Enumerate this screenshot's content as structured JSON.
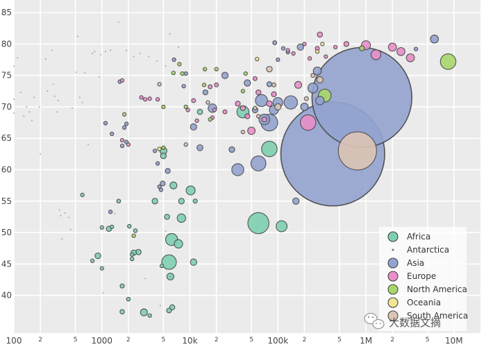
{
  "chart_data": {
    "type": "scatter",
    "title": "",
    "xlabel": "",
    "ylabel": "",
    "x_scale": "log",
    "xlim": [
      100,
      20000000
    ],
    "ylim": [
      34,
      87
    ],
    "x_major_ticks": [
      {
        "value": 100,
        "label": "100"
      },
      {
        "value": 1000,
        "label": "1000"
      },
      {
        "value": 10000,
        "label": "10k"
      },
      {
        "value": 100000,
        "label": "100k"
      },
      {
        "value": 1000000,
        "label": "1M"
      },
      {
        "value": 10000000,
        "label": "10M"
      }
    ],
    "x_minor_ticks": [
      {
        "value": 200,
        "label": "2"
      },
      {
        "value": 500,
        "label": "5"
      },
      {
        "value": 2000,
        "label": "2"
      },
      {
        "value": 5000,
        "label": "5"
      },
      {
        "value": 20000,
        "label": "2"
      },
      {
        "value": 50000,
        "label": "5"
      },
      {
        "value": 200000,
        "label": "2"
      },
      {
        "value": 500000,
        "label": "5"
      },
      {
        "value": 2000000,
        "label": "2"
      },
      {
        "value": 5000000,
        "label": "5"
      }
    ],
    "y_ticks": [
      {
        "value": 40,
        "label": "40"
      },
      {
        "value": 45,
        "label": "45"
      },
      {
        "value": 50,
        "label": "50"
      },
      {
        "value": 55,
        "label": "55"
      },
      {
        "value": 60,
        "label": "60"
      },
      {
        "value": 65,
        "label": "65"
      },
      {
        "value": 70,
        "label": "70"
      },
      {
        "value": 75,
        "label": "75"
      },
      {
        "value": 80,
        "label": "80"
      },
      {
        "value": 85,
        "label": "85"
      }
    ],
    "grid": true,
    "legend_position": "bottom-right",
    "series": [
      {
        "name": "Africa",
        "color": "#7ecfb0",
        "points": [
          [
            600,
            56,
            1.5
          ],
          [
            1550,
            55,
            1.8
          ],
          [
            2050,
            51,
            1.7
          ],
          [
            2400,
            50.3,
            1.7
          ],
          [
            4000,
            55,
            4
          ],
          [
            5500,
            52.5,
            3.2
          ],
          [
            6500,
            57.5,
            6
          ],
          [
            8000,
            55,
            4
          ],
          [
            8000,
            52.3,
            9
          ],
          [
            10200,
            56.7,
            10
          ],
          [
            11500,
            55,
            2.1
          ],
          [
            6200,
            48.9,
            18
          ],
          [
            7400,
            48.2,
            9
          ],
          [
            4800,
            44.7,
            1.1
          ],
          [
            5800,
            45.3,
            26
          ],
          [
            6000,
            43,
            6
          ],
          [
            11000,
            45.3,
            5
          ],
          [
            2200,
            46.5,
            1.1
          ],
          [
            2300,
            46.8,
            3.5
          ],
          [
            2600,
            46.9,
            3.6
          ],
          [
            2200,
            45.8,
            1.5
          ],
          [
            1000,
            50.8,
            1.1
          ],
          [
            1200,
            50.6,
            3.2
          ],
          [
            1300,
            50.9,
            0.7
          ],
          [
            900,
            46.3,
            4
          ],
          [
            780,
            45.5,
            1
          ],
          [
            1000,
            44.3,
            1.5
          ],
          [
            1700,
            41.5,
            2.2
          ],
          [
            2000,
            39.4,
            1.7
          ],
          [
            1700,
            37.4,
            2.5
          ],
          [
            3000,
            37.3,
            6
          ],
          [
            3500,
            36.8,
            1.5
          ],
          [
            5800,
            37.6,
            2.8
          ],
          [
            6300,
            38.1,
            3.3
          ],
          [
            60000,
            51.5,
            55
          ],
          [
            110000,
            51,
            15
          ],
          [
            80000,
            63.3,
            30
          ],
          [
            40000,
            69.2,
            18
          ],
          [
            5000,
            63,
            6
          ],
          [
            5000,
            62.2,
            4
          ],
          [
            13000,
            69.2,
            3.4
          ]
        ]
      },
      {
        "name": "Antarctica",
        "color": "#7a8290",
        "points": [
          [
            100,
            76.5,
            0.03
          ],
          [
            100,
            71.2,
            0.03
          ],
          [
            100,
            69,
            0.03
          ],
          [
            110,
            77.8,
            0.03
          ],
          [
            120,
            72.3,
            0.03
          ],
          [
            130,
            68.5,
            0.03
          ],
          [
            140,
            70,
            0.03
          ],
          [
            150,
            69.2,
            0.03
          ],
          [
            160,
            67.8,
            0.03
          ],
          [
            170,
            71.5,
            0.03
          ],
          [
            195,
            70,
            0.03
          ],
          [
            200,
            62.5,
            0.03
          ],
          [
            230,
            77.6,
            0.03
          ],
          [
            240,
            72.5,
            0.03
          ],
          [
            270,
            79,
            0.03
          ],
          [
            280,
            73.6,
            0.03
          ],
          [
            290,
            71.7,
            0.03
          ],
          [
            310,
            69.2,
            0.03
          ],
          [
            320,
            71,
            0.03
          ],
          [
            330,
            53.6,
            0.03
          ],
          [
            340,
            52.7,
            0.03
          ],
          [
            350,
            49,
            0.03
          ],
          [
            380,
            53.1,
            0.03
          ],
          [
            420,
            52.4,
            0.03
          ],
          [
            440,
            50.5,
            0.03
          ],
          [
            460,
            69.8,
            0.03
          ],
          [
            510,
            75.5,
            0.03
          ],
          [
            530,
            81.2,
            0.03
          ],
          [
            560,
            71.5,
            0.03
          ],
          [
            600,
            70.7,
            0.03
          ],
          [
            640,
            75.4,
            0.03
          ],
          [
            700,
            64,
            0.03
          ],
          [
            780,
            78.5,
            0.03
          ],
          [
            830,
            78.8,
            0.03
          ],
          [
            930,
            74.8,
            0.03
          ],
          [
            970,
            78.3,
            0.03
          ],
          [
            1100,
            78.8,
            0.03
          ],
          [
            1250,
            79,
            0.03
          ],
          [
            1550,
            83.5,
            0.03
          ],
          [
            1900,
            79,
            0.03
          ],
          [
            2300,
            78,
            0.03
          ],
          [
            2700,
            78.5,
            0.03
          ],
          [
            3400,
            78,
            0.03
          ],
          [
            4200,
            77.3,
            0.03
          ],
          [
            5300,
            76.5,
            0.03
          ],
          [
            5900,
            81.6,
            0.03
          ],
          [
            7400,
            79.5,
            0.03
          ],
          [
            3100,
            42.7,
            0.03
          ],
          [
            4600,
            38.4,
            0.03
          ],
          [
            5300,
            50.2,
            0.03
          ],
          [
            6000,
            43,
            0.03
          ],
          [
            1030,
            40.4,
            0.03
          ],
          [
            1400,
            53,
            0.03
          ]
        ]
      },
      {
        "name": "Asia",
        "color": "#94a3cf",
        "points": [
          [
            1700,
            63.8,
            1
          ],
          [
            1800,
            66.7,
            1
          ],
          [
            1900,
            64.4,
            1.2
          ],
          [
            1900,
            67.3,
            1
          ],
          [
            1600,
            74,
            0.5
          ],
          [
            1250,
            53.3,
            1.1
          ],
          [
            1100,
            67.4,
            0.5
          ],
          [
            1300,
            65.7,
            0.5
          ],
          [
            4000,
            63,
            1.3
          ],
          [
            4300,
            61,
            1
          ],
          [
            4500,
            57.3,
            1.5
          ],
          [
            4700,
            56.8,
            1.4
          ],
          [
            4900,
            57.8,
            3
          ],
          [
            5600,
            59.8,
            3
          ],
          [
            6600,
            77.5,
            1
          ],
          [
            9000,
            75.3,
            1
          ],
          [
            8500,
            73.3,
            0.5
          ],
          [
            11000,
            66.8,
            5
          ],
          [
            13000,
            63.5,
            4.5
          ],
          [
            15000,
            72.3,
            3
          ],
          [
            18000,
            69.8,
            9
          ],
          [
            25000,
            75,
            5
          ],
          [
            30000,
            63.2,
            4
          ],
          [
            35000,
            60,
            18
          ],
          [
            45000,
            73.8,
            5
          ],
          [
            55000,
            69.5,
            4
          ],
          [
            60000,
            61,
            28
          ],
          [
            65000,
            71,
            18
          ],
          [
            70000,
            68,
            14
          ],
          [
            80000,
            67.5,
            35
          ],
          [
            90000,
            69.5,
            10
          ],
          [
            100000,
            70.7,
            12
          ],
          [
            80000,
            73.6,
            3
          ],
          [
            92000,
            80.2,
            2
          ],
          [
            100000,
            77.5,
            1.5
          ],
          [
            115000,
            79.3,
            1.5
          ],
          [
            130000,
            78.7,
            1.5
          ],
          [
            140000,
            70.7,
            22
          ],
          [
            160000,
            55,
            5
          ],
          [
            180000,
            79.5,
            5
          ],
          [
            200000,
            70,
            7
          ],
          [
            250000,
            73,
            12
          ],
          [
            280000,
            75.7,
            8
          ],
          [
            300000,
            71,
            9
          ],
          [
            420000,
            62.5,
            1330
          ],
          [
            900000,
            71.5,
            1230
          ],
          [
            6000000,
            80.8,
            8
          ],
          [
            3700000,
            79.2,
            1
          ]
        ]
      },
      {
        "name": "Europe",
        "color": "#e98ec8",
        "points": [
          [
            1700,
            74.2,
            0.2
          ],
          [
            1700,
            64.7,
            1
          ],
          [
            2000,
            64,
            1
          ],
          [
            2800,
            71.5,
            1
          ],
          [
            3100,
            71.2,
            1
          ],
          [
            3500,
            71.3,
            1
          ],
          [
            4300,
            71.2,
            1
          ],
          [
            9500,
            69.5,
            1.5
          ],
          [
            11000,
            71,
            2
          ],
          [
            12000,
            67.8,
            1.5
          ],
          [
            17000,
            73.2,
            2
          ],
          [
            18000,
            68.3,
            1.2
          ],
          [
            19000,
            69.5,
            1.3
          ],
          [
            20000,
            73.5,
            2
          ],
          [
            25000,
            69.2,
            2
          ],
          [
            35000,
            70.5,
            3
          ],
          [
            40000,
            69.8,
            3
          ],
          [
            45000,
            68.5,
            3
          ],
          [
            55000,
            74.5,
            2
          ],
          [
            50000,
            66.2,
            7
          ],
          [
            60000,
            72.3,
            3
          ],
          [
            70000,
            68,
            3
          ],
          [
            80000,
            70.5,
            4
          ],
          [
            90000,
            72,
            3
          ],
          [
            130000,
            79,
            1.5
          ],
          [
            150000,
            78.5,
            1.5
          ],
          [
            170000,
            73.5,
            6
          ],
          [
            200000,
            80,
            1.5
          ],
          [
            230000,
            77.7,
            1.5
          ],
          [
            280000,
            79.3,
            2
          ],
          [
            300000,
            81.5,
            3.5
          ],
          [
            350000,
            78,
            1
          ],
          [
            450000,
            79.5,
            1.5
          ],
          [
            220000,
            67.5,
            30
          ],
          [
            1000000,
            79.8,
            10
          ],
          [
            1300000,
            78.3,
            12
          ],
          [
            2000000,
            79.5,
            8
          ],
          [
            2500000,
            78.8,
            8
          ],
          [
            3200000,
            77.8,
            8
          ],
          [
            600000,
            80,
            3
          ]
        ]
      },
      {
        "name": "North America",
        "color": "#a8d66a",
        "points": [
          [
            1800,
            68.8,
            0.3
          ],
          [
            2300,
            49.5,
            0.3
          ],
          [
            5000,
            63.5,
            0.3
          ],
          [
            5000,
            70,
            0.3
          ],
          [
            6500,
            75.4,
            0.3
          ],
          [
            7600,
            76.8,
            0.3
          ],
          [
            8200,
            75.3,
            0.3
          ],
          [
            9000,
            70,
            0.3
          ],
          [
            14500,
            73.5,
            0.3
          ],
          [
            14800,
            76,
            0.3
          ],
          [
            17000,
            68,
            0.3
          ],
          [
            20000,
            76,
            0.6
          ],
          [
            40000,
            72.5,
            0.6
          ],
          [
            43000,
            75.3,
            0.6
          ],
          [
            340000,
            71.8,
            20
          ],
          [
            900000,
            79.3,
            3
          ],
          [
            8600000,
            77.2,
            30
          ]
        ]
      },
      {
        "name": "Oceania",
        "color": "#f3e596",
        "points": [
          [
            4500,
            63.3,
            0.3
          ],
          [
            280000,
            78.8,
            0.7
          ],
          [
            320000,
            80,
            0.7
          ],
          [
            58000,
            77.6,
            0.2
          ]
        ]
      },
      {
        "name": "South America",
        "color": "#dcc4b4",
        "points": [
          [
            4500,
            73.6,
            0.3
          ],
          [
            9000,
            64,
            0.5
          ],
          [
            16000,
            70.7,
            0.3
          ],
          [
            40000,
            66,
            0.5
          ],
          [
            55000,
            69.8,
            1.5
          ],
          [
            60000,
            68.5,
            1
          ],
          [
            80000,
            76,
            4
          ],
          [
            90000,
            73.5,
            2
          ],
          [
            100000,
            70,
            5
          ],
          [
            210000,
            71.3,
            2
          ],
          [
            300000,
            74.3,
            5
          ],
          [
            250000,
            75,
            2
          ],
          [
            800000,
            63,
            180
          ]
        ]
      }
    ]
  },
  "watermark": {
    "text": "大数据文摘"
  }
}
